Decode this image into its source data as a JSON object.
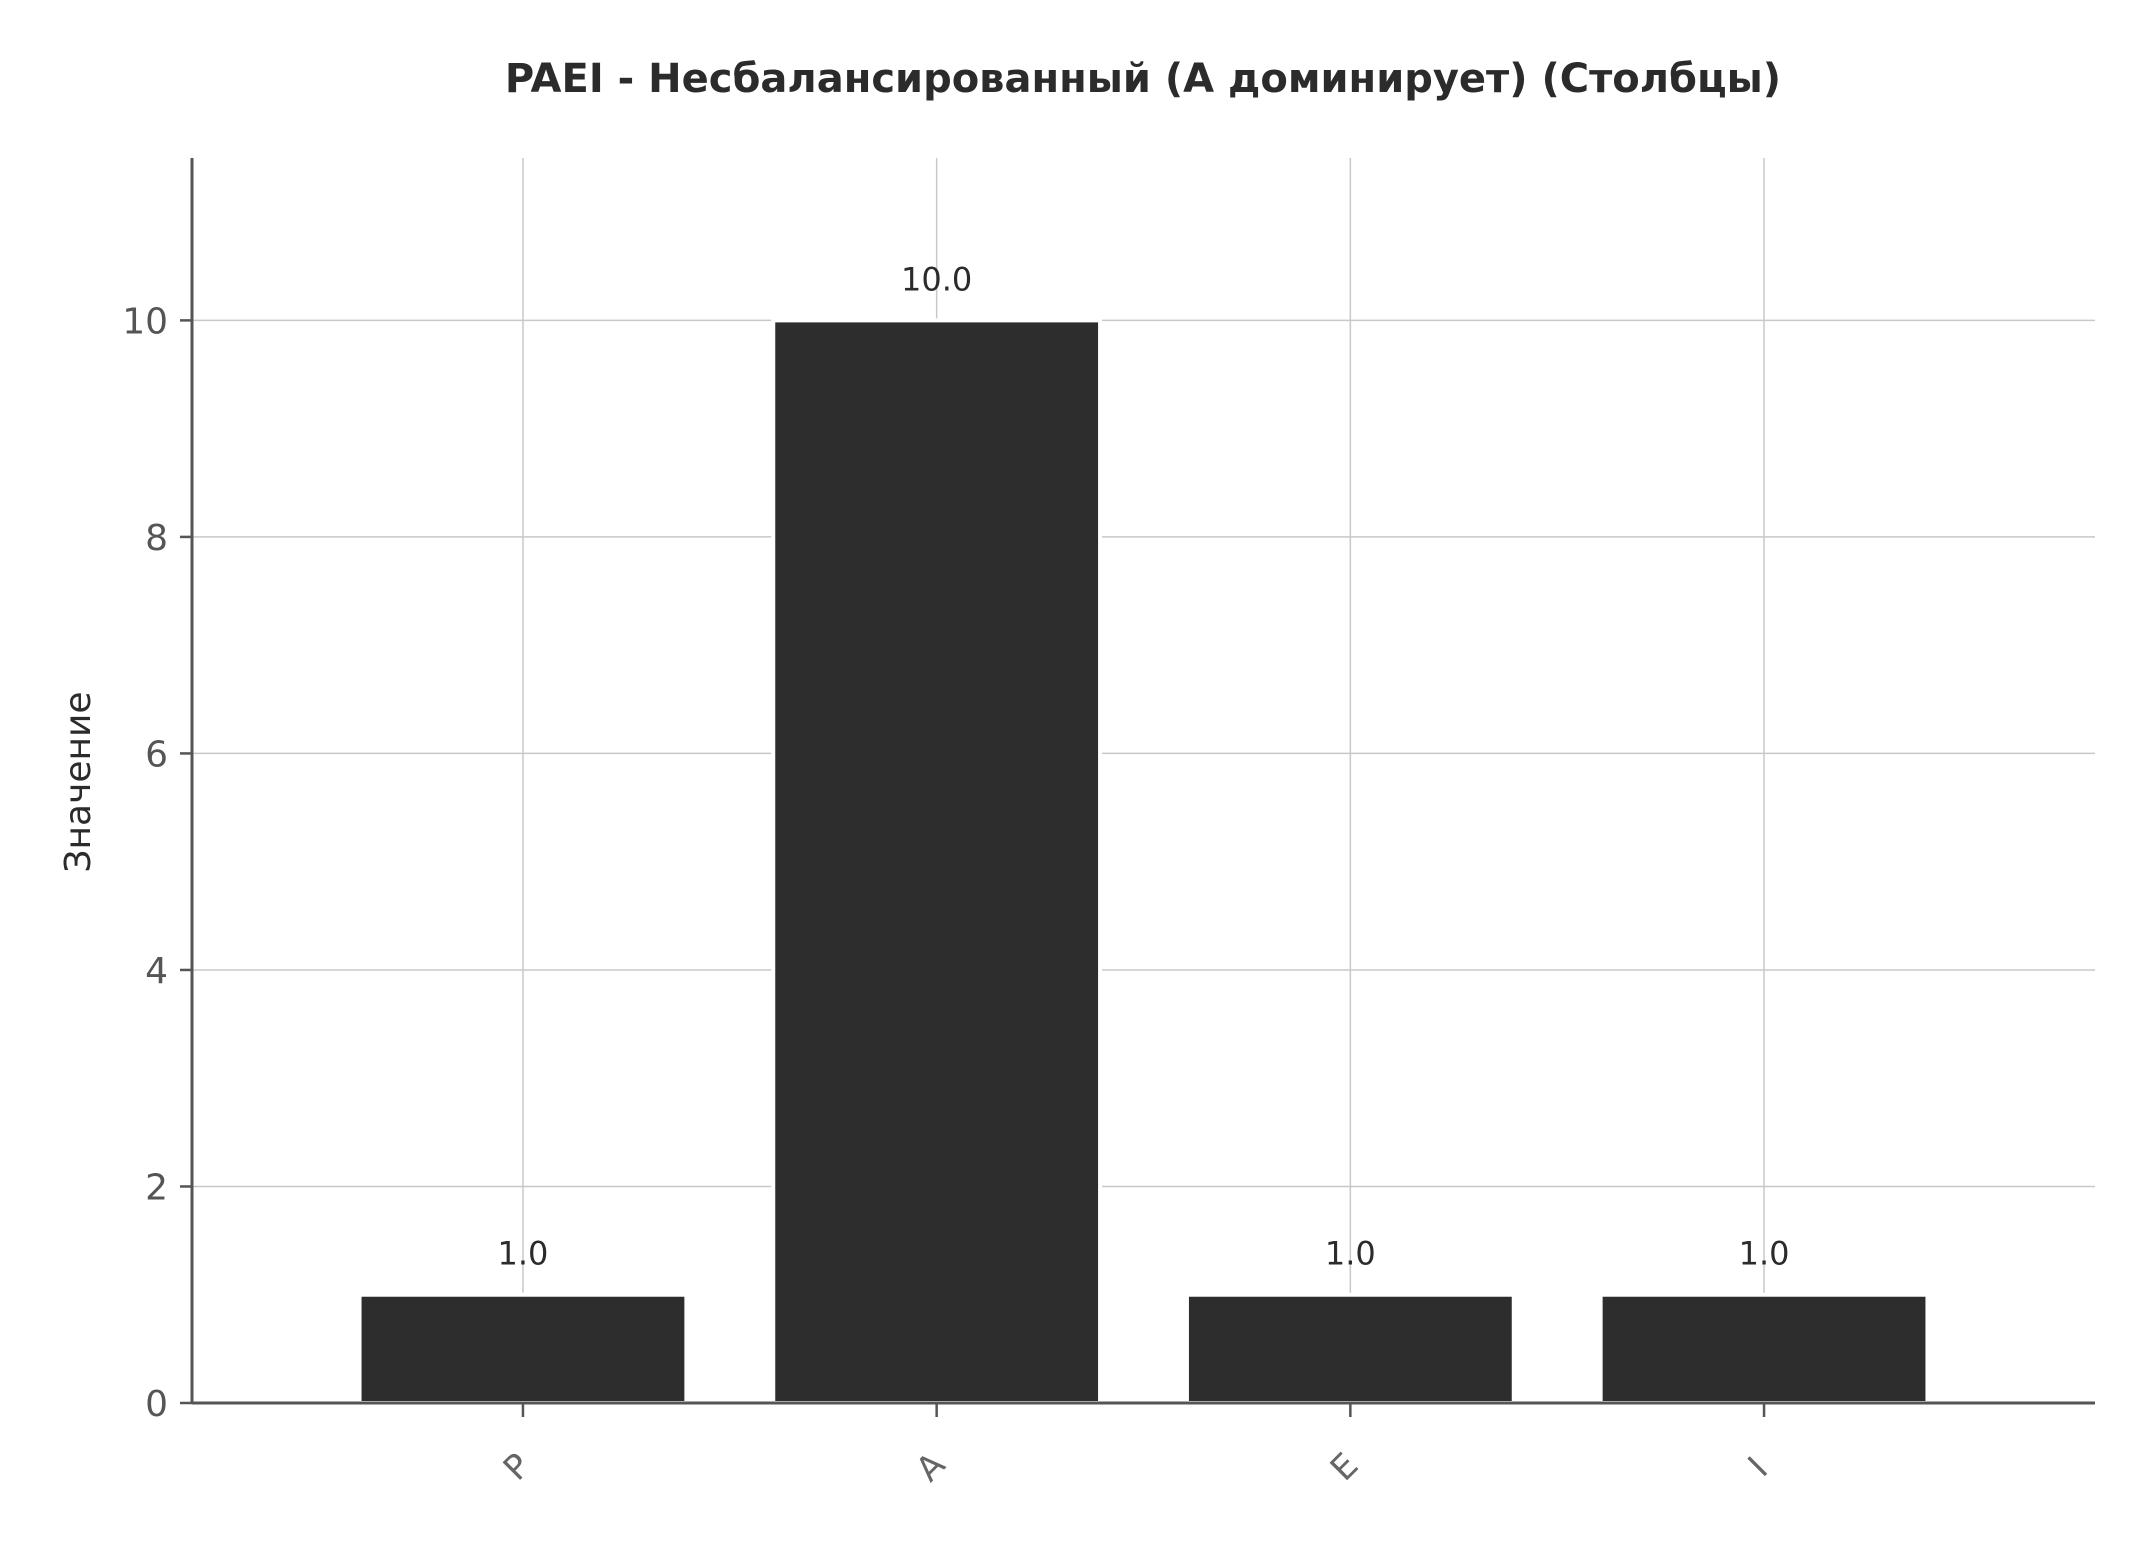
{
  "chart_data": {
    "type": "bar",
    "title": "PAEI - Несбалансированный (A доминирует) (Столбцы)",
    "xlabel": "",
    "ylabel": "Значение",
    "categories": [
      "P",
      "A",
      "E",
      "I"
    ],
    "values": [
      1.0,
      10.0,
      1.0,
      1.0
    ],
    "value_labels": [
      "1.0",
      "10.0",
      "1.0",
      "1.0"
    ],
    "ylim": [
      0,
      11.5
    ],
    "yticks": [
      0,
      2,
      4,
      6,
      8,
      10
    ],
    "grid": true,
    "legend": "none",
    "bar_color": "#2d2d2d",
    "grid_color": "#c8c8c8",
    "axis_color": "#555555"
  }
}
